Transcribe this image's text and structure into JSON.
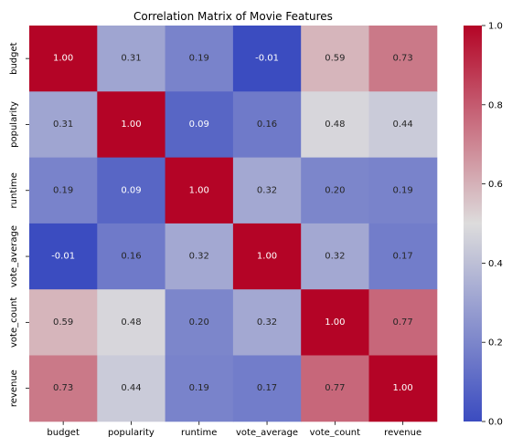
{
  "chart_data": {
    "type": "heatmap",
    "title": "Correlation Matrix of Movie Features",
    "x_labels": [
      "budget",
      "popularity",
      "runtime",
      "vote_average",
      "vote_count",
      "revenue"
    ],
    "y_labels": [
      "budget",
      "popularity",
      "runtime",
      "vote_average",
      "vote_count",
      "revenue"
    ],
    "values": [
      [
        1.0,
        0.31,
        0.19,
        -0.01,
        0.59,
        0.73
      ],
      [
        0.31,
        1.0,
        0.09,
        0.16,
        0.48,
        0.44
      ],
      [
        0.19,
        0.09,
        1.0,
        0.32,
        0.2,
        0.19
      ],
      [
        -0.01,
        0.16,
        0.32,
        1.0,
        0.32,
        0.17
      ],
      [
        0.59,
        0.48,
        0.2,
        0.32,
        1.0,
        0.77
      ],
      [
        0.73,
        0.44,
        0.19,
        0.17,
        0.77,
        1.0
      ]
    ],
    "value_format": "0.00",
    "colormap": "coolwarm",
    "colorbar": {
      "range": [
        0.0,
        1.0
      ],
      "ticks": [
        "0.0",
        "0.2",
        "0.4",
        "0.6",
        "0.8",
        "1.0"
      ]
    },
    "colormap_anchors": [
      "#3b4cc0",
      "#dddcdc",
      "#b40426"
    ]
  }
}
